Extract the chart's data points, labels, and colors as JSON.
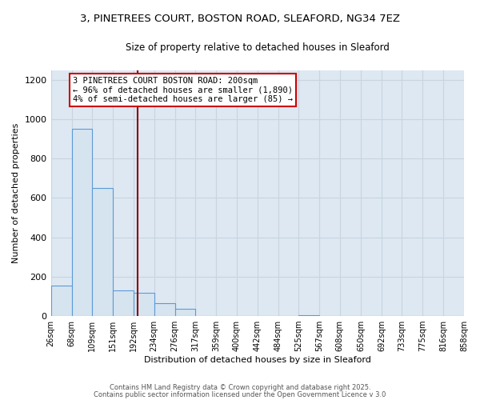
{
  "title_line1": "3, PINETREES COURT, BOSTON ROAD, SLEAFORD, NG34 7EZ",
  "title_line2": "Size of property relative to detached houses in Sleaford",
  "xlabel": "Distribution of detached houses by size in Sleaford",
  "ylabel": "Number of detached properties",
  "bar_edges": [
    26,
    68,
    109,
    151,
    192,
    234,
    276,
    317,
    359,
    400,
    442,
    484,
    525,
    567,
    608,
    650,
    692,
    733,
    775,
    816,
    858
  ],
  "bar_heights": [
    155,
    950,
    650,
    130,
    120,
    65,
    35,
    0,
    0,
    0,
    0,
    0,
    5,
    0,
    0,
    0,
    0,
    0,
    0,
    0,
    2
  ],
  "bar_facecolor": "#d6e4f0",
  "bar_edgecolor": "#5b9bd5",
  "vline_x": 200,
  "vline_color": "#8b0000",
  "annotation_text": "3 PINETREES COURT BOSTON ROAD: 200sqm\n← 96% of detached houses are smaller (1,890)\n4% of semi-detached houses are larger (85) →",
  "annotation_fontsize": 7.5,
  "annotation_box_color": "#cc0000",
  "ylim": [
    0,
    1250
  ],
  "xlim": [
    26,
    858
  ],
  "yticks": [
    0,
    200,
    400,
    600,
    800,
    1000,
    1200
  ],
  "grid_color": "#c8d4e0",
  "bg_color": "#dde8f3",
  "footnote1": "Contains HM Land Registry data © Crown copyright and database right 2025.",
  "footnote2": "Contains public sector information licensed under the Open Government Licence v 3.0",
  "title_fontsize": 9.5,
  "subtitle_fontsize": 8.5,
  "tick_fontsize": 7,
  "tick_labels": [
    "26sqm",
    "68sqm",
    "109sqm",
    "151sqm",
    "192sqm",
    "234sqm",
    "276sqm",
    "317sqm",
    "359sqm",
    "400sqm",
    "442sqm",
    "484sqm",
    "525sqm",
    "567sqm",
    "608sqm",
    "650sqm",
    "692sqm",
    "733sqm",
    "775sqm",
    "816sqm",
    "858sqm"
  ]
}
